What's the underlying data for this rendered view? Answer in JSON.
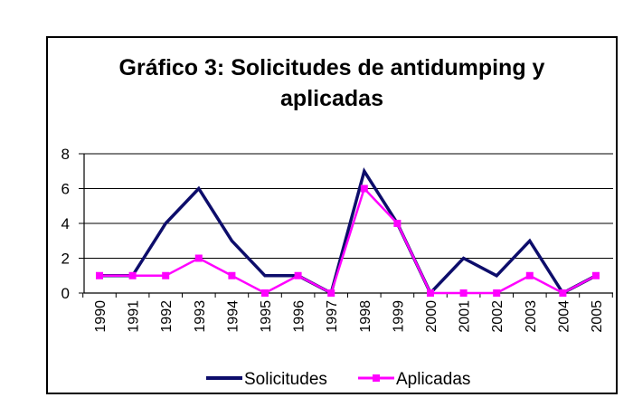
{
  "chart_data": {
    "type": "line",
    "title": "Gráfico 3: Solicitudes de antidumping y aplicadas",
    "title_lines": [
      "Gráfico 3: Solicitudes de antidumping y",
      "aplicadas"
    ],
    "categories": [
      "1990",
      "1991",
      "1992",
      "1993",
      "1994",
      "1995",
      "1996",
      "1997",
      "1998",
      "1999",
      "2000",
      "2001",
      "2002",
      "2003",
      "2004",
      "2005"
    ],
    "series": [
      {
        "name": "Solicitudes",
        "color": "#0d0d6b",
        "marker": "none",
        "values": [
          1,
          1,
          4,
          6,
          3,
          1,
          1,
          0,
          7,
          4,
          0,
          2,
          1,
          3,
          0,
          1
        ]
      },
      {
        "name": "Aplicadas",
        "color": "#ff00ff",
        "marker": "square",
        "values": [
          1,
          1,
          1,
          2,
          1,
          0,
          1,
          0,
          6,
          4,
          0,
          0,
          0,
          1,
          0,
          1
        ]
      }
    ],
    "ylim": [
      0,
      8
    ],
    "yticks": [
      "0",
      "2",
      "4",
      "6",
      "8"
    ],
    "xlabel": "",
    "ylabel": "",
    "grid": "horizontal",
    "legend_position": "bottom"
  }
}
